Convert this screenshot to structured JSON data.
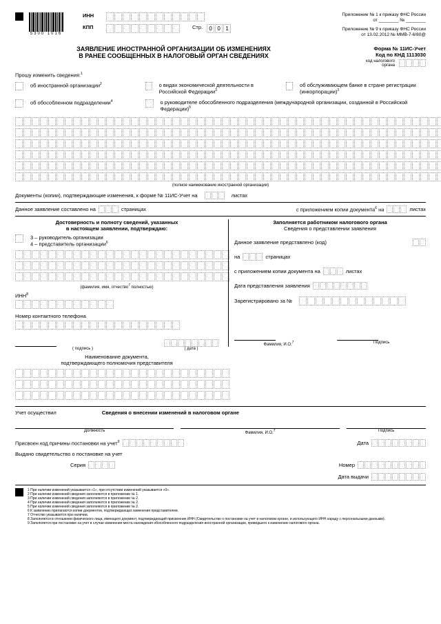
{
  "header": {
    "attach1": "Приложение № 1 к приказу ФНС России",
    "attach1_from": "от ________ № ________",
    "attach2": "Приложение № 9 к приказу ФНС России",
    "attach2_from": "от 13.02.2012 № ММВ-7-6/80@",
    "barcode_num": "5300 1016",
    "inn_label": "ИНН",
    "kpp_label": "КПП",
    "page_label": "Стр.",
    "page_val": "001"
  },
  "title": {
    "line1": "ЗАЯВЛЕНИЕ ИНОСТРАННОЙ ОРГАНИЗАЦИИ ОБ ИЗМЕНЕНИЯХ",
    "line2": "В РАНЕЕ СООБЩЕННЫХ В НАЛОГОВЫЙ ОРГАН СВЕДЕНИЯХ",
    "form": "Форма № 11ИС-Учет",
    "knd": "Код по КНД 1113030",
    "tax_code": "код налогового органа"
  },
  "request": "Прошу изменить сведения:",
  "cb": {
    "foreign_org": "об иностранной организации",
    "subdivision": "об обособленном подразделении",
    "econ_activity": "о видах экономической деятельности в Российской Федерации",
    "bank": "об обслуживающем банке в стране регистрации (инкорпорации)",
    "head": "о руководителе обособленного подразделения (международной организации, созданной в Российской Федерации)"
  },
  "full_name_note": "(полное наименование иностранной организации)",
  "docs_confirm": "Документы (копии), подтверждающие изменения, к форме № 11ИС-Учет на",
  "sheets": "листах",
  "statement_on": "Данное заявление составлено на",
  "pages": "страницах",
  "with_copy": "с приложением копии документа",
  "on": "на",
  "left": {
    "title1": "Достоверность и полноту сведений, указанных",
    "title2": "в настоящем заявлении, подтверждаю:",
    "opt3": "3 – руководитель организации",
    "opt4": "4 – представитель организации",
    "fio_note": "(фамилия, имя, отчество",
    "fio_note2": "полностью)",
    "inn": "ИНН",
    "phone": "Номер контактного телефона",
    "sign": "( подпись )",
    "date": "( дата )",
    "doc_name": "Наименование документа,",
    "doc_conf": "подтверждающего полномочия представителя"
  },
  "right": {
    "title1": "Заполняется работником налогового органа",
    "title2": "Сведения о представлении заявления",
    "presented": "Данное заявление представлено (код)",
    "on_pages": "страницах",
    "na": "на",
    "with_doc": "с приложением копии документа на",
    "sheets": "листах",
    "date_present": "Дата представления заявления",
    "registered": "Зарегистрировано за №",
    "fio": "Фамилия, И.О.",
    "sign": "Подпись"
  },
  "bottom": {
    "uchet": "Учет осуществил",
    "section": "Сведения о внесении изменений в налоговом органе",
    "position": "Должность",
    "fio": "Фамилия, И.О.",
    "sign": "Подпись",
    "kpp_assigned": "Присвоен код причины постановки на учет",
    "date": "Дата",
    "cert_issued": "Выдано свидетельство о постановке на учет",
    "series": "Серия",
    "number": "Номер",
    "issue_date": "Дата выдачи"
  },
  "footnotes": [
    "1 При наличии изменений указывается «1», при отсутствии изменений указывается «0».",
    "2 При наличии изменений сведения заполняются в приложении № 1.",
    "3 При наличии изменений сведения заполняются в приложении № 2.",
    "4 При наличии изменений сведения заполняются в приложении № 2.",
    "5 При наличии изменений сведения заполняются в приложении № 2.",
    "6 К заявлению прилагаются копии документов, подтверждающих изменения представителем.",
    "7 Отчество указывается при наличии.",
    "8 Заполняется в отношении физического лица, имеющего документ, подтверждающий присвоение ИНН (Свидетельство о постановке на учет в налоговом органе, и использующего ИНН нараду с персональными данными).",
    "9 Заполняется при постановке на учет в случае изменения места нахождения обособленного подразделения иностранной организации, приведшего к изменению налогового органа."
  ]
}
